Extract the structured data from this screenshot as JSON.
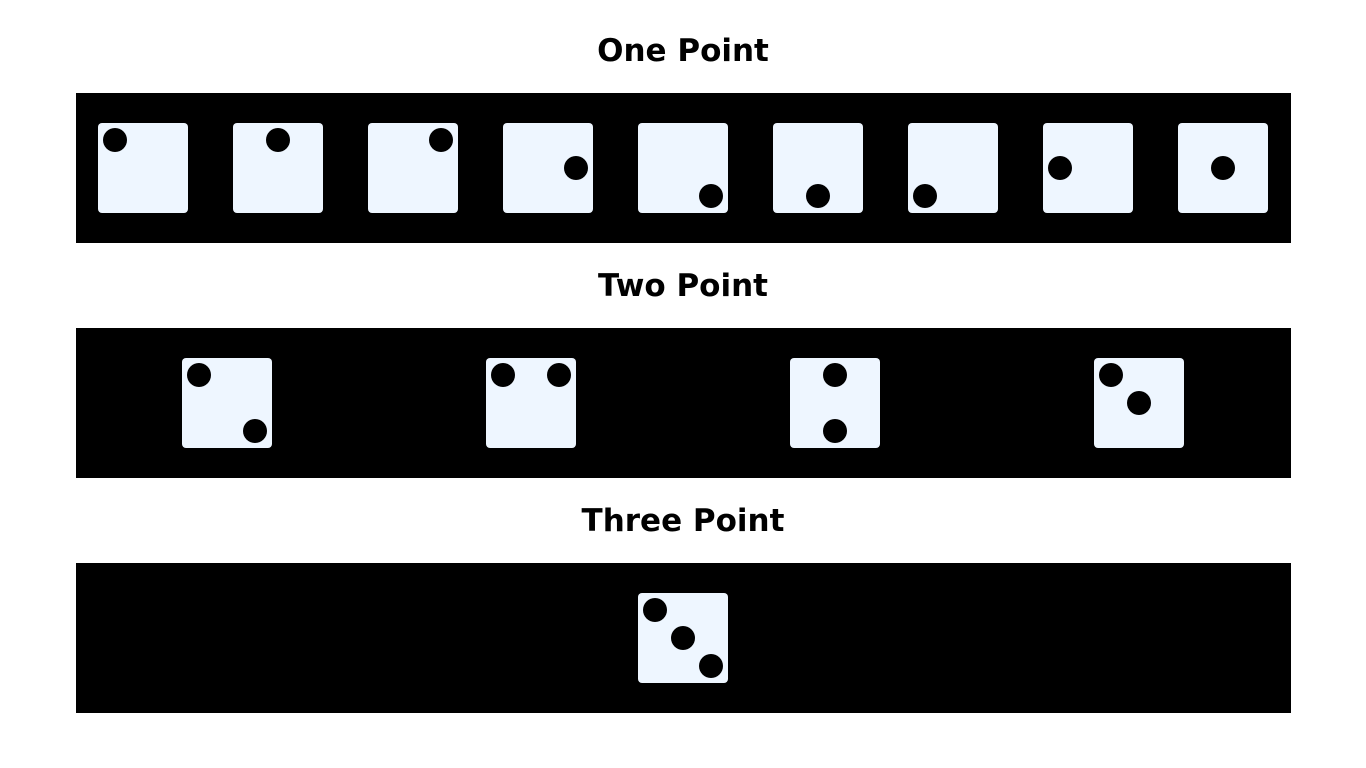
{
  "sections": {
    "one": {
      "title": "One Point",
      "dice": [
        [
          "tl"
        ],
        [
          "tc"
        ],
        [
          "tr"
        ],
        [
          "mr"
        ],
        [
          "br"
        ],
        [
          "bc"
        ],
        [
          "bl"
        ],
        [
          "ml"
        ],
        [
          "mc"
        ]
      ]
    },
    "two": {
      "title": "Two Point",
      "dice": [
        [
          "tl",
          "br"
        ],
        [
          "tl",
          "tr"
        ],
        [
          "tc",
          "bc"
        ],
        [
          "tl",
          "mc"
        ]
      ]
    },
    "three": {
      "title": "Three Point",
      "dice": [
        [
          "tl",
          "mc",
          "br"
        ]
      ]
    }
  },
  "colors": {
    "band": "#000000",
    "die_face": "#eef6ff",
    "pip": "#000000",
    "background": "#ffffff"
  }
}
